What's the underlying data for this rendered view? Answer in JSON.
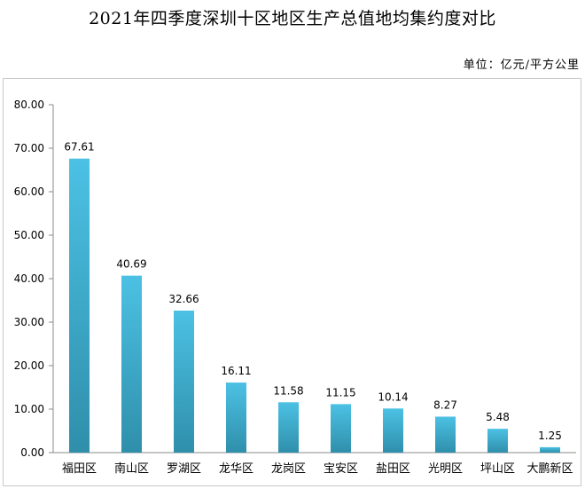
{
  "title": "2021年四季度深圳十区地区生产总值地均集约度对比",
  "unit_label": "单位：亿元/平方公里",
  "colors": {
    "bar_top": "#4cc1e4",
    "bar_bottom": "#2f8fab",
    "axis": "#8a8a8a"
  },
  "chart_data": {
    "type": "bar",
    "title": "2021年四季度深圳十区地区生产总值地均集约度对比",
    "xlabel": "",
    "ylabel": "",
    "ylim": [
      0,
      80
    ],
    "yticks": [
      "0.00",
      "10.00",
      "20.00",
      "30.00",
      "40.00",
      "50.00",
      "60.00",
      "70.00",
      "80.00"
    ],
    "categories": [
      "福田区",
      "南山区",
      "罗湖区",
      "龙华区",
      "龙岗区",
      "宝安区",
      "盐田区",
      "光明区",
      "坪山区",
      "大鹏新区"
    ],
    "values": [
      67.61,
      40.69,
      32.66,
      16.11,
      11.58,
      11.15,
      10.14,
      8.27,
      5.48,
      1.25
    ],
    "value_labels": [
      "67.61",
      "40.69",
      "32.66",
      "16.11",
      "11.58",
      "11.15",
      "10.14",
      "8.27",
      "5.48",
      "1.25"
    ],
    "grid": false,
    "legend": "none"
  }
}
